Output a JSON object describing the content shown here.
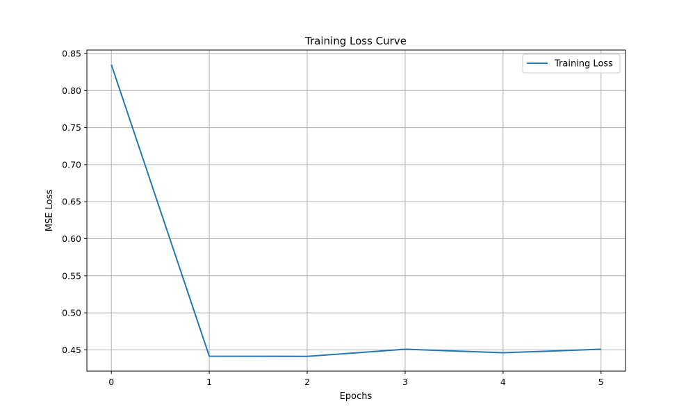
{
  "chart_data": {
    "type": "line",
    "title": "Training Loss Curve",
    "xlabel": "Epochs",
    "ylabel": "MSE Loss",
    "x": [
      0,
      1,
      2,
      3,
      4,
      5
    ],
    "series": [
      {
        "name": "Training Loss",
        "values": [
          0.835,
          0.4415,
          0.4412,
          0.4508,
          0.4461,
          0.4508
        ],
        "color": "#1f77b4"
      }
    ],
    "xticks": [
      "0",
      "1",
      "2",
      "3",
      "4",
      "5"
    ],
    "yticks": [
      "0.45",
      "0.50",
      "0.55",
      "0.60",
      "0.65",
      "0.70",
      "0.75",
      "0.80",
      "0.85"
    ],
    "xlim": [
      -0.25,
      5.25
    ],
    "ylim": [
      0.4213,
      0.8547
    ],
    "grid": true,
    "legend_position": "top-right"
  }
}
